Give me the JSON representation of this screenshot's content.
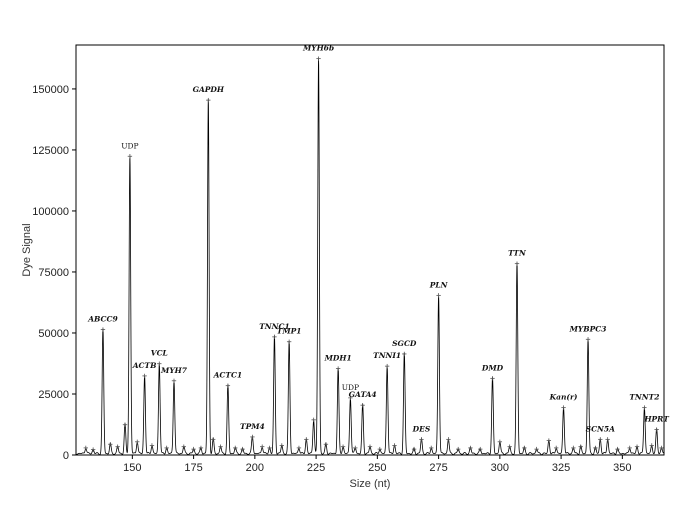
{
  "chart_data": {
    "type": "line",
    "xlabel": "Size (nt)",
    "ylabel": "Dye Signal",
    "xlim": [
      127,
      367
    ],
    "ylim": [
      0,
      168000
    ],
    "xticks": [
      150,
      175,
      200,
      225,
      250,
      275,
      300,
      325,
      350
    ],
    "yticks": [
      0,
      25000,
      50000,
      75000,
      100000,
      125000,
      150000
    ],
    "xtick_labels": [
      "150",
      "175",
      "200",
      "225",
      "250",
      "275",
      "300",
      "325",
      "350"
    ],
    "ytick_labels": [
      "0",
      "25000",
      "50000",
      "75000",
      "100000",
      "125000",
      "150000"
    ],
    "grid": false,
    "line_color": "#000000",
    "marker_color": "#555555",
    "peaks": [
      {
        "label": "ABCC9",
        "x": 138,
        "y": 51000,
        "italic": true
      },
      {
        "label": "UDP",
        "x": 149,
        "y": 122000,
        "italic": false
      },
      {
        "label": "ACTB",
        "x": 155,
        "y": 32000,
        "italic": true
      },
      {
        "label": "VCL",
        "x": 161,
        "y": 37000,
        "italic": true
      },
      {
        "label": "MYH7",
        "x": 167,
        "y": 30000,
        "italic": true
      },
      {
        "label": "GAPDH",
        "x": 181,
        "y": 145000,
        "italic": true
      },
      {
        "label": "ACTC1",
        "x": 189,
        "y": 28000,
        "italic": true
      },
      {
        "label": "TPM4",
        "x": 199,
        "y": 7000,
        "italic": true
      },
      {
        "label": "TNNC1",
        "x": 208,
        "y": 48000,
        "italic": true
      },
      {
        "label": "TMP1",
        "x": 214,
        "y": 46000,
        "italic": true
      },
      {
        "label": "MYH6b",
        "x": 226,
        "y": 162000,
        "italic": true
      },
      {
        "label": "MDH1",
        "x": 234,
        "y": 35000,
        "italic": true
      },
      {
        "label": "UDP",
        "x": 239,
        "y": 23000,
        "italic": false
      },
      {
        "label": "GATA4",
        "x": 244,
        "y": 20000,
        "italic": true
      },
      {
        "label": "TNNI1",
        "x": 254,
        "y": 36000,
        "italic": true
      },
      {
        "label": "SGCD",
        "x": 261,
        "y": 41000,
        "italic": true
      },
      {
        "label": "DES",
        "x": 268,
        "y": 6000,
        "italic": true
      },
      {
        "label": "PLN",
        "x": 275,
        "y": 65000,
        "italic": true
      },
      {
        "label": "DMD",
        "x": 297,
        "y": 31000,
        "italic": true
      },
      {
        "label": "TTN",
        "x": 307,
        "y": 78000,
        "italic": true
      },
      {
        "label": "Kan(r)",
        "x": 326,
        "y": 19000,
        "italic": true
      },
      {
        "label": "MYBPC3",
        "x": 336,
        "y": 47000,
        "italic": true
      },
      {
        "label": "SCN5A",
        "x": 341,
        "y": 6000,
        "italic": true
      },
      {
        "label": "TNNT2",
        "x": 359,
        "y": 19000,
        "italic": true
      },
      {
        "label": "HPRT",
        "x": 364,
        "y": 10000,
        "italic": true
      }
    ],
    "minor_peaks": [
      {
        "x": 131,
        "y": 2500
      },
      {
        "x": 134,
        "y": 1800
      },
      {
        "x": 141,
        "y": 4000
      },
      {
        "x": 144,
        "y": 3000
      },
      {
        "x": 147,
        "y": 12000
      },
      {
        "x": 152,
        "y": 5000
      },
      {
        "x": 158,
        "y": 3500
      },
      {
        "x": 164,
        "y": 2500
      },
      {
        "x": 171,
        "y": 3000
      },
      {
        "x": 175,
        "y": 2000
      },
      {
        "x": 178,
        "y": 2500
      },
      {
        "x": 183,
        "y": 6000
      },
      {
        "x": 186,
        "y": 3000
      },
      {
        "x": 192,
        "y": 2500
      },
      {
        "x": 195,
        "y": 2000
      },
      {
        "x": 203,
        "y": 3000
      },
      {
        "x": 206,
        "y": 2500
      },
      {
        "x": 211,
        "y": 3500
      },
      {
        "x": 218,
        "y": 2500
      },
      {
        "x": 221,
        "y": 6000
      },
      {
        "x": 224,
        "y": 14000
      },
      {
        "x": 229,
        "y": 4000
      },
      {
        "x": 236,
        "y": 3000
      },
      {
        "x": 241,
        "y": 2500
      },
      {
        "x": 247,
        "y": 3000
      },
      {
        "x": 251,
        "y": 2000
      },
      {
        "x": 257,
        "y": 3500
      },
      {
        "x": 265,
        "y": 2000
      },
      {
        "x": 272,
        "y": 2500
      },
      {
        "x": 279,
        "y": 6000
      },
      {
        "x": 283,
        "y": 2000
      },
      {
        "x": 288,
        "y": 2500
      },
      {
        "x": 292,
        "y": 2000
      },
      {
        "x": 300,
        "y": 5000
      },
      {
        "x": 304,
        "y": 3000
      },
      {
        "x": 310,
        "y": 2500
      },
      {
        "x": 315,
        "y": 2000
      },
      {
        "x": 320,
        "y": 5500
      },
      {
        "x": 323,
        "y": 2500
      },
      {
        "x": 330,
        "y": 2500
      },
      {
        "x": 333,
        "y": 3000
      },
      {
        "x": 339,
        "y": 2500
      },
      {
        "x": 344,
        "y": 6000
      },
      {
        "x": 348,
        "y": 2000
      },
      {
        "x": 353,
        "y": 2500
      },
      {
        "x": 356,
        "y": 3000
      },
      {
        "x": 362,
        "y": 3500
      },
      {
        "x": 366,
        "y": 2500
      }
    ]
  }
}
